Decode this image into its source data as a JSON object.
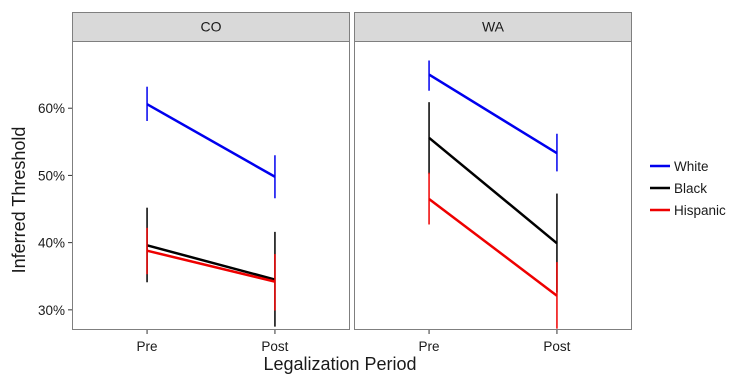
{
  "chart_data": {
    "type": "line",
    "xlabel": "Legalization Period",
    "ylabel": "Inferred Threshold",
    "categories": [
      "Pre",
      "Post"
    ],
    "ylim": [
      27,
      70
    ],
    "yticks": [
      30,
      40,
      50,
      60
    ],
    "ytick_labels": [
      "30%",
      "40%",
      "50%",
      "60%"
    ],
    "grid": false,
    "legend_position": "right",
    "legend": [
      {
        "name": "White",
        "color": "#0000ee"
      },
      {
        "name": "Black",
        "color": "#000000"
      },
      {
        "name": "Hispanic",
        "color": "#ee0000"
      }
    ],
    "panels": [
      {
        "title": "CO",
        "series": [
          {
            "name": "White",
            "values": [
              60.6,
              49.8
            ],
            "lower": [
              58.1,
              46.6
            ],
            "upper": [
              63.2,
              53.0
            ]
          },
          {
            "name": "Black",
            "values": [
              39.6,
              34.5
            ],
            "lower": [
              34.1,
              27.5
            ],
            "upper": [
              45.2,
              41.6
            ]
          },
          {
            "name": "Hispanic",
            "values": [
              38.8,
              34.2
            ],
            "lower": [
              35.3,
              29.9
            ],
            "upper": [
              42.2,
              38.3
            ]
          }
        ]
      },
      {
        "title": "WA",
        "series": [
          {
            "name": "White",
            "values": [
              65.0,
              53.3
            ],
            "lower": [
              62.6,
              50.6
            ],
            "upper": [
              67.1,
              56.2
            ]
          },
          {
            "name": "Black",
            "values": [
              55.6,
              39.9
            ],
            "lower": [
              50.2,
              32.6
            ],
            "upper": [
              60.9,
              47.3
            ]
          },
          {
            "name": "Hispanic",
            "values": [
              46.5,
              32.1
            ],
            "lower": [
              42.7,
              27.2
            ],
            "upper": [
              50.4,
              37.1
            ]
          }
        ]
      }
    ]
  }
}
